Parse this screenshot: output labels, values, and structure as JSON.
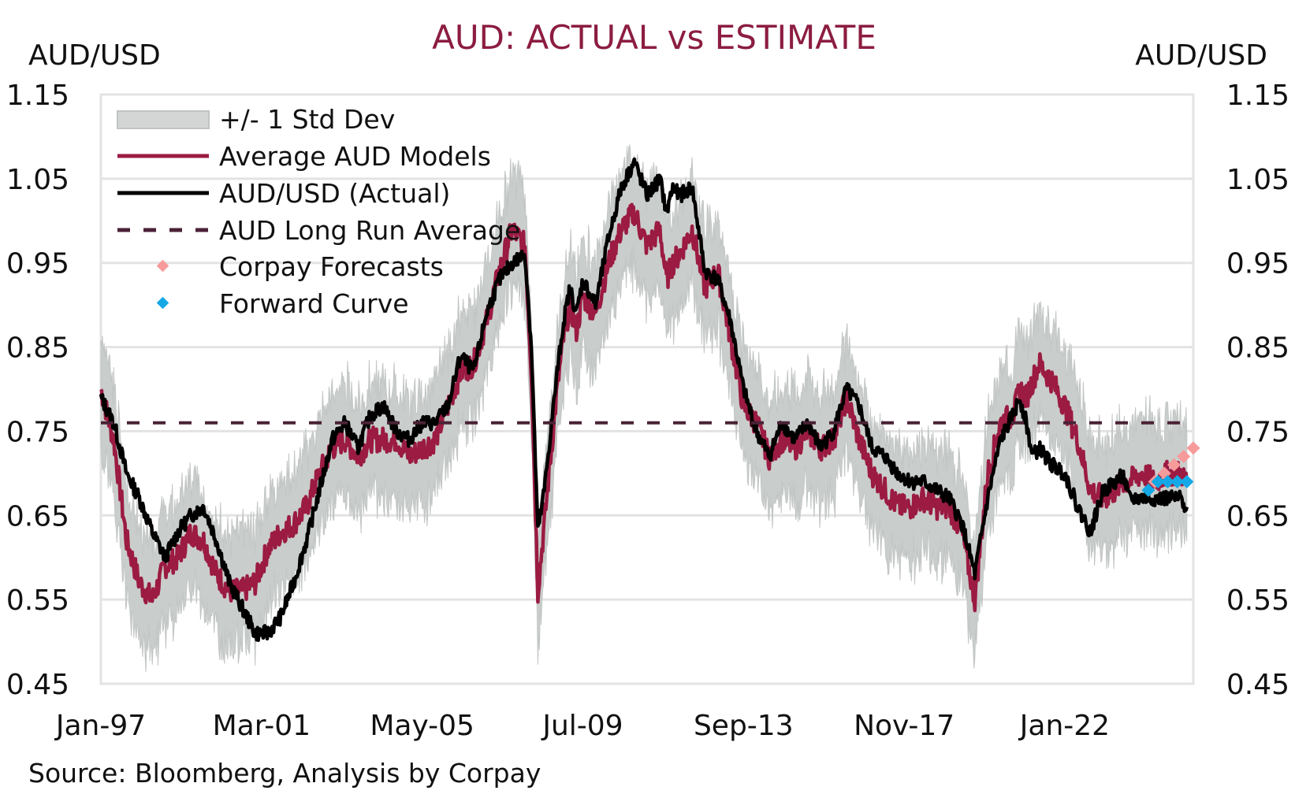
{
  "chart_data": {
    "type": "line",
    "title": "AUD: ACTUAL vs ESTIMATE",
    "ylabel_left": "AUD/USD",
    "ylabel_right": "AUD/USD",
    "xlabel": "",
    "ylim": [
      0.45,
      1.15
    ],
    "y_ticks": [
      "1.15",
      "1.05",
      "0.95",
      "0.85",
      "0.75",
      "0.65",
      "0.55",
      "0.45"
    ],
    "y_tick_values": [
      1.15,
      1.05,
      0.95,
      0.85,
      0.75,
      0.65,
      0.55,
      0.45
    ],
    "x_start": "Jan-97",
    "x_range_months": [
      0,
      340
    ],
    "x_ticks": [
      {
        "label": "Jan-97",
        "month": 0
      },
      {
        "label": "Mar-01",
        "month": 50
      },
      {
        "label": "May-05",
        "month": 100
      },
      {
        "label": "Jul-09",
        "month": 150
      },
      {
        "label": "Sep-13",
        "month": 200
      },
      {
        "label": "Nov-17",
        "month": 250
      },
      {
        "label": "Jan-22",
        "month": 300
      }
    ],
    "grid": "horizontal",
    "legend_position": "top-left",
    "legend": [
      {
        "label": "+/- 1 Std Dev",
        "type": "band",
        "color": "#c9cdcb"
      },
      {
        "label": "Average AUD Models",
        "type": "line",
        "color": "#9b1b42"
      },
      {
        "label": "AUD/USD (Actual)",
        "type": "line",
        "color": "#000000"
      },
      {
        "label": "AUD Long Run Average",
        "type": "dashed",
        "color": "#4a2236"
      },
      {
        "label": "Corpay Forecasts",
        "type": "diamond",
        "color": "#f79a9a"
      },
      {
        "label": "Forward Curve",
        "type": "diamond",
        "color": "#14a9e6"
      }
    ],
    "long_run_average": 0.76,
    "series": [
      {
        "name": "AUD/USD (Actual)",
        "months": [
          0,
          4,
          8,
          12,
          16,
          20,
          24,
          28,
          32,
          36,
          40,
          44,
          48,
          52,
          56,
          60,
          64,
          68,
          72,
          76,
          80,
          84,
          88,
          92,
          96,
          100,
          104,
          108,
          112,
          116,
          120,
          124,
          128,
          132,
          134,
          136,
          138,
          140,
          142,
          144,
          146,
          148,
          150,
          154,
          158,
          162,
          166,
          170,
          174,
          176,
          178,
          180,
          184,
          188,
          192,
          196,
          200,
          204,
          208,
          212,
          216,
          220,
          224,
          228,
          232,
          236,
          240,
          244,
          248,
          252,
          256,
          260,
          264,
          268,
          272,
          276,
          280,
          284,
          286,
          288,
          290,
          292,
          296,
          300,
          304,
          308,
          312,
          316,
          318,
          320,
          324,
          328,
          332,
          336,
          338
        ],
        "values": [
          0.79,
          0.76,
          0.7,
          0.67,
          0.63,
          0.6,
          0.63,
          0.65,
          0.66,
          0.62,
          0.57,
          0.54,
          0.51,
          0.51,
          0.53,
          0.57,
          0.62,
          0.68,
          0.74,
          0.76,
          0.73,
          0.77,
          0.78,
          0.75,
          0.74,
          0.76,
          0.76,
          0.78,
          0.84,
          0.82,
          0.89,
          0.93,
          0.95,
          0.96,
          0.85,
          0.63,
          0.68,
          0.75,
          0.82,
          0.88,
          0.92,
          0.89,
          0.93,
          0.9,
          0.98,
          1.04,
          1.07,
          1.03,
          1.05,
          1.01,
          1.04,
          1.03,
          1.04,
          0.94,
          0.93,
          0.88,
          0.8,
          0.75,
          0.72,
          0.76,
          0.74,
          0.76,
          0.73,
          0.75,
          0.8,
          0.78,
          0.73,
          0.72,
          0.7,
          0.69,
          0.69,
          0.68,
          0.67,
          0.64,
          0.58,
          0.67,
          0.74,
          0.77,
          0.79,
          0.76,
          0.72,
          0.73,
          0.71,
          0.7,
          0.66,
          0.63,
          0.68,
          0.69,
          0.7,
          0.67,
          0.67,
          0.67,
          0.67,
          0.67,
          0.66
        ]
      },
      {
        "name": "Average AUD Models",
        "months": [
          0,
          4,
          8,
          12,
          16,
          20,
          24,
          28,
          32,
          36,
          40,
          44,
          48,
          52,
          56,
          60,
          64,
          68,
          72,
          76,
          80,
          84,
          88,
          92,
          96,
          100,
          104,
          108,
          112,
          116,
          120,
          124,
          128,
          132,
          134,
          136,
          138,
          140,
          142,
          144,
          146,
          148,
          150,
          154,
          158,
          162,
          166,
          170,
          174,
          176,
          178,
          180,
          184,
          188,
          192,
          196,
          200,
          204,
          208,
          212,
          216,
          220,
          224,
          228,
          232,
          236,
          240,
          244,
          248,
          252,
          256,
          260,
          264,
          268,
          272,
          276,
          280,
          284,
          286,
          288,
          290,
          292,
          296,
          300,
          304,
          308,
          312,
          316,
          318,
          320,
          324,
          328,
          332,
          336,
          338
        ],
        "values": [
          0.8,
          0.74,
          0.62,
          0.57,
          0.55,
          0.59,
          0.6,
          0.63,
          0.62,
          0.58,
          0.56,
          0.56,
          0.57,
          0.61,
          0.63,
          0.64,
          0.66,
          0.7,
          0.73,
          0.74,
          0.72,
          0.74,
          0.74,
          0.74,
          0.72,
          0.73,
          0.74,
          0.78,
          0.82,
          0.83,
          0.88,
          0.94,
          0.99,
          0.97,
          0.82,
          0.56,
          0.64,
          0.72,
          0.8,
          0.86,
          0.9,
          0.87,
          0.91,
          0.89,
          0.95,
          0.99,
          1.01,
          0.97,
          0.99,
          0.93,
          0.95,
          0.96,
          0.99,
          0.92,
          0.94,
          0.86,
          0.78,
          0.76,
          0.72,
          0.74,
          0.73,
          0.75,
          0.73,
          0.74,
          0.79,
          0.74,
          0.7,
          0.68,
          0.66,
          0.66,
          0.67,
          0.66,
          0.66,
          0.63,
          0.55,
          0.7,
          0.76,
          0.77,
          0.8,
          0.79,
          0.81,
          0.83,
          0.81,
          0.78,
          0.74,
          0.68,
          0.67,
          0.68,
          0.69,
          0.69,
          0.7,
          0.69,
          0.7,
          0.7,
          0.69
        ]
      }
    ],
    "band": {
      "name": "+/- 1 Std Dev",
      "half_width": 0.045
    },
    "forecasts": {
      "corpay": {
        "name": "Corpay Forecasts",
        "months": [
          328,
          331,
          334,
          337,
          340
        ],
        "values": [
          0.69,
          0.7,
          0.71,
          0.72,
          0.73
        ]
      },
      "forward_curve": {
        "name": "Forward Curve",
        "months": [
          326,
          329,
          332,
          335,
          338
        ],
        "values": [
          0.68,
          0.69,
          0.69,
          0.69,
          0.69
        ]
      }
    },
    "source": "Source: Bloomberg, Analysis by Corpay"
  }
}
